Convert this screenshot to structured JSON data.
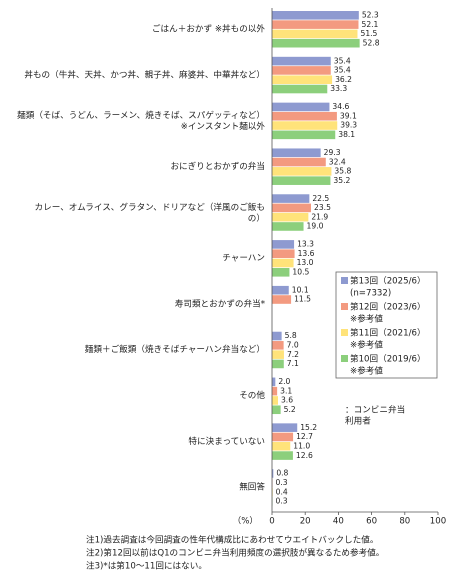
{
  "chart_data": {
    "type": "bar",
    "orientation": "horizontal",
    "categories": [
      "ごはん＋おかず ※丼もの以外",
      "丼もの（牛丼、天丼、かつ丼、親子丼、麻婆丼、中華丼など）",
      "麺類（そば、うどん、ラーメン、焼きそば、スパゲッティなど）\n※インスタント麺以外",
      "おにぎりとおかずの弁当",
      "カレー、オムライス、グラタン、ドリアなど（洋風のご飯も\nの）",
      "チャーハン",
      "寿司類とおかずの弁当*",
      "麺類＋ご飯類（焼きそばチャーハン弁当など）",
      "その他",
      "特に決まっていない",
      "無回答"
    ],
    "series": [
      {
        "name": "第13回（2025/6）",
        "note": "(n=7332)",
        "color": "#8e9ad0",
        "values": [
          52.3,
          35.4,
          34.6,
          29.3,
          22.5,
          13.3,
          10.1,
          5.8,
          2.0,
          15.2,
          0.8
        ],
        "value_labels": [
          "52.3",
          "35.4",
          "34.6",
          "29.3",
          "22.5",
          "13.3",
          "10.1",
          "5.8",
          "2.0",
          "15.2",
          "0.8"
        ]
      },
      {
        "name": "第12回（2023/6）",
        "note": "※参考値",
        "color": "#f39a80",
        "values": [
          52.1,
          35.4,
          39.1,
          32.4,
          23.5,
          13.6,
          11.5,
          7.0,
          3.1,
          12.7,
          0.3
        ],
        "value_labels": [
          "52.1",
          "35.4",
          "39.1",
          "32.4",
          "23.5",
          "13.6",
          "11.5",
          "7.0",
          "3.1",
          "12.7",
          "0.3"
        ]
      },
      {
        "name": "第11回（2021/6）",
        "note": "※参考値",
        "color": "#ffe37a",
        "values": [
          51.5,
          36.2,
          39.3,
          35.8,
          21.9,
          13.0,
          null,
          7.2,
          3.6,
          11.0,
          0.4
        ],
        "value_labels": [
          "51.5",
          "36.2",
          "39.3",
          "35.8",
          "21.9",
          "13.0",
          null,
          "7.2",
          "3.6",
          "11.0",
          "0.4"
        ]
      },
      {
        "name": "第10回（2019/6）",
        "note": "※参考値",
        "color": "#8ccf7c",
        "values": [
          52.8,
          33.3,
          38.1,
          35.2,
          19.0,
          10.5,
          null,
          7.1,
          5.2,
          12.6,
          0.3
        ],
        "value_labels": [
          "52.8",
          "33.3",
          "38.1",
          "35.2",
          "19.0",
          "10.5",
          null,
          "7.1",
          "5.2",
          "12.6",
          "0.3"
        ]
      }
    ],
    "legend_note": "：コンビニ弁当\n利用者",
    "x_unit": "（%）",
    "xlim": [
      0,
      100
    ],
    "xticks": [
      0,
      20,
      40,
      60,
      80,
      100
    ],
    "notes": [
      "注1)過去調査は今回調査の性年代構成比にあわせてウエイトバックした値。",
      "注2)第12回以前はQ1のコンビニ弁当利用頻度の選択肢が異なるため参考値。",
      "注3)*は第10〜11回にはない。"
    ]
  }
}
